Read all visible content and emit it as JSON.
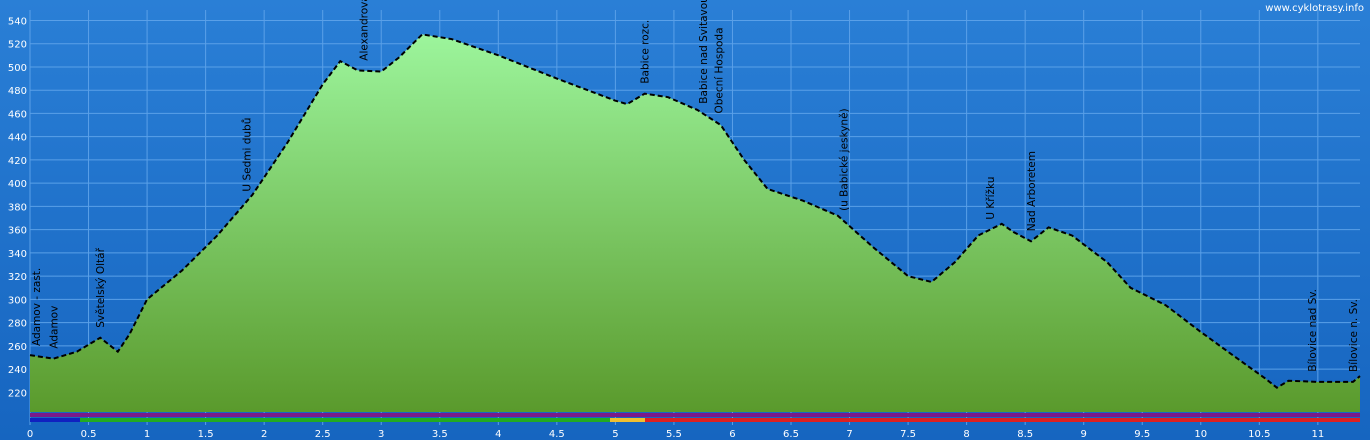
{
  "chart_data": {
    "type": "line",
    "watermark": "www.cyklotrasy.info",
    "x": [
      0,
      0.2,
      0.4,
      0.6,
      0.75,
      0.85,
      1.0,
      1.3,
      1.6,
      1.9,
      2.2,
      2.5,
      2.65,
      2.8,
      3.0,
      3.15,
      3.35,
      3.6,
      4.0,
      4.5,
      5.0,
      5.1,
      5.25,
      5.45,
      5.7,
      5.9,
      6.1,
      6.3,
      6.6,
      6.9,
      7.2,
      7.5,
      7.7,
      7.9,
      8.1,
      8.3,
      8.4,
      8.55,
      8.7,
      8.9,
      9.2,
      9.4,
      9.7,
      10.0,
      10.3,
      10.55,
      10.65,
      10.75,
      11.0,
      11.3,
      11.36
    ],
    "values": [
      252,
      249,
      255,
      267,
      255,
      270,
      300,
      325,
      355,
      390,
      435,
      485,
      505,
      497,
      496,
      508,
      528,
      524,
      510,
      490,
      471,
      468,
      477,
      474,
      463,
      450,
      420,
      395,
      385,
      372,
      345,
      320,
      315,
      332,
      355,
      365,
      358,
      350,
      362,
      355,
      332,
      310,
      295,
      272,
      250,
      232,
      224,
      230,
      229,
      229,
      234
    ],
    "xlim": [
      0,
      11.36
    ],
    "ylim": [
      179,
      549
    ],
    "xticks": [
      0,
      0.5,
      1,
      1.5,
      2,
      2.5,
      3,
      3.5,
      4,
      4.5,
      5,
      5.5,
      6,
      6.5,
      7,
      7.5,
      8,
      8.5,
      9,
      9.5,
      10,
      10.5,
      11
    ],
    "yticks": [
      220,
      240,
      260,
      280,
      300,
      320,
      340,
      360,
      380,
      400,
      420,
      440,
      460,
      480,
      500,
      520,
      540
    ],
    "grid": true,
    "waypoints": [
      {
        "name": "Adamov - zast.",
        "x": 0.05
      },
      {
        "name": "Adamov",
        "x": 0.2
      },
      {
        "name": "Světelský Oltář",
        "x": 0.6
      },
      {
        "name": "U Sedmi dubů",
        "x": 1.85
      },
      {
        "name": "Alexandrova rozhledna",
        "x": 2.85
      },
      {
        "name": "Babice rozc.",
        "x": 5.25
      },
      {
        "name": "Babice nad Svitavou",
        "x": 5.75
      },
      {
        "name": "Obecní Hospoda",
        "x": 5.88
      },
      {
        "name": "(u Babické jeskyně)",
        "x": 6.95
      },
      {
        "name": "U Křížku",
        "x": 8.2
      },
      {
        "name": "Nad Arboretem",
        "x": 8.55
      },
      {
        "name": "Bílovice nad Sv.",
        "x": 10.95
      },
      {
        "name": "Bílovice n. Sv.",
        "x": 11.3
      }
    ]
  }
}
